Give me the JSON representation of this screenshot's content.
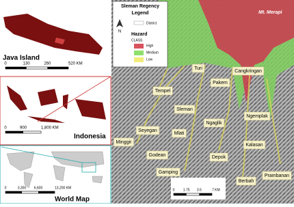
{
  "insets": [
    {
      "title": "Java Island",
      "scale": [
        "0",
        "130",
        "260",
        "520 KM"
      ]
    },
    {
      "title": "Indonesia",
      "scale": [
        "0",
        "900",
        "1,800 KM"
      ]
    },
    {
      "title": "World Map",
      "scale": [
        "0",
        "3,300",
        "6,600",
        "13,200 KM"
      ]
    }
  ],
  "legend": {
    "title": "Sleman Regency",
    "subtitle": "Legend",
    "north": "N",
    "district": "District",
    "hazard": "Hazard",
    "class": "CLASS",
    "classes": [
      {
        "label": "High",
        "color": "#d9535f"
      },
      {
        "label": "Medium",
        "color": "#8fe06b"
      },
      {
        "label": "Low",
        "color": "#f2ec7a"
      }
    ]
  },
  "volcano": "Mt. Merapi",
  "districts": [
    "Turi",
    "Cangkringan",
    "Pakem",
    "Tempel",
    "Sleman",
    "Ngaglik",
    "Ngemplak",
    "Seyegan",
    "Mlati",
    "Minggir",
    "Godean",
    "Kalasan",
    "Depok",
    "Gamping",
    "Berbah",
    "Prambanan"
  ],
  "scale": [
    "0",
    "1.75",
    "3.5",
    "7 KM"
  ]
}
